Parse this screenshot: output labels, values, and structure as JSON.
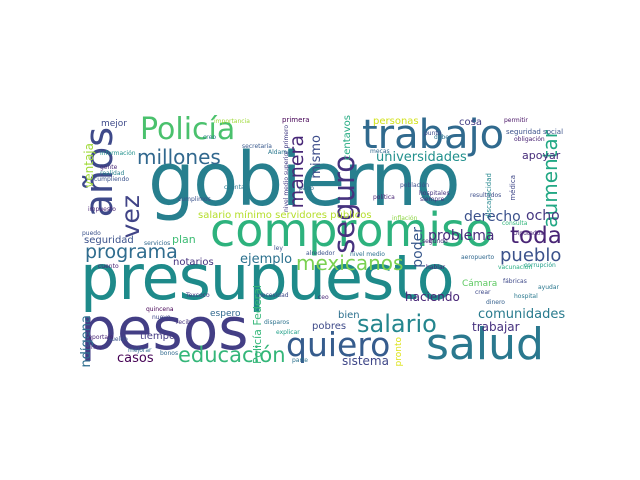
{
  "words": [
    {
      "text": "presupuesto",
      "color": "#1e8a8a"
    },
    {
      "text": "gobierno",
      "color": "#277f8e"
    },
    {
      "text": "pesos",
      "color": "#433e85"
    },
    {
      "text": "compromiso",
      "color": "#2db27d"
    },
    {
      "text": "trabajo",
      "color": "#306a8e"
    },
    {
      "text": "salud",
      "color": "#2a788e"
    },
    {
      "text": "quiero",
      "color": "#365c8d"
    },
    {
      "text": "años",
      "color": "#3e4989"
    },
    {
      "text": "Policía",
      "color": "#4ac16d"
    },
    {
      "text": "millones",
      "color": "#31688e"
    },
    {
      "text": "salario",
      "color": "#24868e"
    },
    {
      "text": "educación",
      "color": "#34b679"
    },
    {
      "text": "programa",
      "color": "#2f6c8e"
    },
    {
      "text": "mexicanos",
      "color": "#7ad151"
    },
    {
      "text": "toda",
      "color": "#482475"
    },
    {
      "text": "seguro",
      "color": "#46327e"
    },
    {
      "text": "vez",
      "color": "#414487"
    },
    {
      "text": "aumentar",
      "color": "#22a884"
    },
    {
      "text": "manera",
      "color": "#482878"
    },
    {
      "text": "pueblo",
      "color": "#3b528b"
    },
    {
      "text": "universidades",
      "color": "#21908d"
    },
    {
      "text": "derecho",
      "color": "#3b518b"
    },
    {
      "text": "comunidades",
      "color": "#297b8e"
    },
    {
      "text": "problema",
      "color": "#472d7b"
    },
    {
      "text": "ejemplo",
      "color": "#2c718e"
    },
    {
      "text": "ocho",
      "color": "#453781"
    },
    {
      "text": "poder",
      "color": "#38588c"
    },
    {
      "text": "mismo",
      "color": "#3d4d8a"
    },
    {
      "text": "casos",
      "color": "#440154"
    },
    {
      "text": "trabajar",
      "color": "#46307e"
    },
    {
      "text": "haciendo",
      "color": "#482677"
    },
    {
      "text": "sistema",
      "color": "#3f4788"
    },
    {
      "text": "indígena",
      "color": "#2e6e8e"
    },
    {
      "text": "apoyar",
      "color": "#472c7a"
    },
    {
      "text": "ventaja",
      "color": "#a0da39"
    },
    {
      "text": "salario mínimo servidores públicos",
      "color": "#b5de2b"
    },
    {
      "text": "centavos",
      "color": "#25ab82"
    },
    {
      "text": "Policía Federal",
      "color": "#35b779"
    },
    {
      "text": "pronto",
      "color": "#dde318"
    },
    {
      "text": "plan",
      "color": "#3dbc74"
    },
    {
      "text": "notarios",
      "color": "#46327e"
    },
    {
      "text": "tiempo",
      "color": "#443a83"
    },
    {
      "text": "seguridad",
      "color": "#3b528b"
    },
    {
      "text": "bien",
      "color": "#2d708e"
    },
    {
      "text": "pobres",
      "color": "#3e4a89"
    },
    {
      "text": "espero",
      "color": "#31688e"
    },
    {
      "text": "personas",
      "color": "#d2e21b"
    },
    {
      "text": "cosa",
      "color": "#433d84"
    },
    {
      "text": "Cámara",
      "color": "#5ec962"
    },
    {
      "text": "mejor",
      "color": "#3e4a89"
    },
    {
      "text": "primera",
      "color": "#440154"
    },
    {
      "text": "importancia",
      "color": "#9fda3a"
    },
    {
      "text": "seguridad social",
      "color": "#3b528b"
    },
    {
      "text": "permitir",
      "color": "#471164"
    },
    {
      "text": "obligación",
      "color": "#482173"
    },
    {
      "text": "información",
      "color": "#21918c"
    },
    {
      "text": "secretaría",
      "color": "#38588c"
    },
    {
      "text": "Aldama",
      "color": "#2a788e"
    },
    {
      "text": "nivel medio superior primero",
      "color": "#433e85"
    },
    {
      "text": "pago",
      "color": "#2c728e"
    },
    {
      "text": "cumpliendo",
      "color": "#3b528b"
    },
    {
      "text": "realidad",
      "color": "#27808e"
    },
    {
      "text": "gente",
      "color": "#482878"
    },
    {
      "text": "crear",
      "color": "#3e4989"
    },
    {
      "text": "fábricas",
      "color": "#3e4989"
    },
    {
      "text": "dinero",
      "color": "#35608d"
    },
    {
      "text": "hospital",
      "color": "#2a788e"
    },
    {
      "text": "ayudar",
      "color": "#2a778e"
    },
    {
      "text": "corrupción",
      "color": "#1f9e89"
    },
    {
      "text": "aeropuerto",
      "color": "#31688e"
    },
    {
      "text": "hospitales",
      "color": "#46337f"
    },
    {
      "text": "resultados",
      "color": "#3d4e8a"
    },
    {
      "text": "Texcoco",
      "color": "#443983"
    },
    {
      "text": "quincena",
      "color": "#440154"
    },
    {
      "text": "cuento",
      "color": "#482475"
    },
    {
      "text": "mejorar",
      "color": "#306a8e"
    },
    {
      "text": "bonos",
      "color": "#306a8e"
    },
    {
      "text": "parte",
      "color": "#2c728e"
    },
    {
      "text": "explicar",
      "color": "#1fa088"
    },
    {
      "text": "nuevo",
      "color": "#3e4a89"
    },
    {
      "text": "servicios",
      "color": "#31688e"
    },
    {
      "text": "puedo",
      "color": "#3b528b"
    },
    {
      "text": "impuesto",
      "color": "#482475"
    },
    {
      "text": "cumplimos",
      "color": "#3b528b"
    },
    {
      "text": "población",
      "color": "#3d4d8a"
    },
    {
      "text": "política",
      "color": "#482475"
    },
    {
      "text": "segundo",
      "color": "#482878"
    },
    {
      "text": "Diputados",
      "color": "#482576"
    },
    {
      "text": "alrededor",
      "color": "#3b528b"
    },
    {
      "text": "nivel medio",
      "color": "#2c718e"
    },
    {
      "text": "cinco",
      "color": "#482878"
    },
    {
      "text": "reportaje",
      "color": "#482475"
    },
    {
      "text": "inflación",
      "color": "#8ed645"
    },
    {
      "text": "discapacidad",
      "color": "#24878e"
    },
    {
      "text": "hablar",
      "color": "#482878"
    },
    {
      "text": "consulta",
      "color": "#31b57b"
    },
    {
      "text": "médica",
      "color": "#3f4788"
    },
    {
      "text": "siempre",
      "color": "#46327e"
    },
    {
      "text": "vacunación",
      "color": "#26ad81"
    },
    {
      "text": "debe",
      "color": "#2c718e"
    },
    {
      "text": "mecas",
      "color": "#31688e"
    },
    {
      "text": "punto",
      "color": "#3e4989"
    },
    {
      "text": "creo",
      "color": "#2a788e"
    },
    {
      "text": "ley",
      "color": "#3b528b"
    },
    {
      "text": "ceo",
      "color": "#482677"
    },
    {
      "text": "recibir",
      "color": "#46337f"
    },
    {
      "text": "cuenta",
      "color": "#2a788e"
    },
    {
      "text": "necesidad",
      "color": "#3e4a89"
    },
    {
      "text": "disparos",
      "color": "#2c728e"
    },
    {
      "text": "sueldo",
      "color": "#3b528b"
    }
  ]
}
